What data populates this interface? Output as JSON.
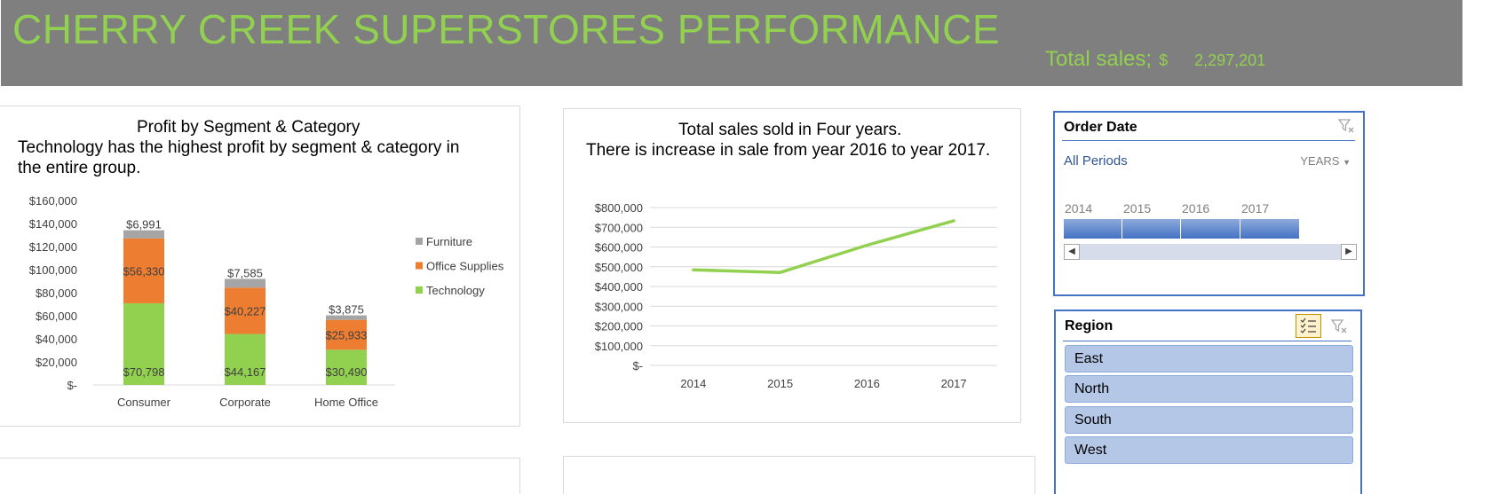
{
  "banner": {
    "title": "CHERRY CREEK SUPERSTORES PERFORMANCE",
    "total_label": "Total sales;",
    "total_currency": "$",
    "total_value": "2,297,201"
  },
  "profit_chart": {
    "title_line1": "Profit by Segment & Category",
    "title_line2": "Technology has the highest profit by  segment & category in",
    "title_line3": "the entire group."
  },
  "sales_chart": {
    "title_line1": "Total sales sold in Four years.",
    "title_line2": "There is increase in sale from year 2016 to year 2017."
  },
  "chart_data": [
    {
      "type": "bar",
      "stacked": true,
      "categories": [
        "Consumer",
        "Corporate",
        "Home Office"
      ],
      "series": [
        {
          "name": "Technology",
          "values": [
            70798,
            44167,
            30490
          ],
          "labels": [
            "$70,798",
            "$44,167",
            "$30,490"
          ],
          "color": "#92d050"
        },
        {
          "name": "Office Supplies",
          "values": [
            56330,
            40227,
            25933
          ],
          "labels": [
            "$56,330",
            "$40,227",
            "$25,933"
          ],
          "color": "#ed7d31"
        },
        {
          "name": "Furniture",
          "values": [
            6991,
            7585,
            3875
          ],
          "labels": [
            "$6,991",
            "$7,585",
            "$3,875"
          ],
          "color": "#a5a5a5"
        }
      ],
      "ylim": [
        0,
        160000
      ],
      "yticks": [
        "$-",
        "$20,000",
        "$40,000",
        "$60,000",
        "$80,000",
        "$100,000",
        "$120,000",
        "$140,000",
        "$160,000"
      ],
      "legend_entries": [
        "Furniture",
        "Office Supplies",
        "Technology"
      ],
      "legend_position": "right",
      "grid": false
    },
    {
      "type": "line",
      "x": [
        "2014",
        "2015",
        "2016",
        "2017"
      ],
      "series": [
        {
          "values": [
            484000,
            471000,
            609000,
            733000
          ],
          "color": "#92d050"
        }
      ],
      "ylim": [
        0,
        800000
      ],
      "yticks": [
        "$-",
        "$100,000",
        "$200,000",
        "$300,000",
        "$400,000",
        "$500,000",
        "$600,000",
        "$700,000",
        "$800,000"
      ],
      "grid": true
    }
  ],
  "order_date_slicer": {
    "header": "Order Date",
    "period": "All Periods",
    "level": "YEARS",
    "years": [
      "2014",
      "2015",
      "2016",
      "2017"
    ],
    "scroll_left": "◀",
    "scroll_right": "▶"
  },
  "region_slicer": {
    "header": "Region",
    "items": [
      "East",
      "North",
      "South",
      "West"
    ]
  },
  "colors": {
    "banner_bg": "#7f7f7f",
    "accent_green": "#92d050",
    "office_orange": "#ed7d31",
    "furniture_gray": "#a5a5a5",
    "slicer_blue": "#4472c4",
    "slicer_item": "#b4c7e7"
  }
}
